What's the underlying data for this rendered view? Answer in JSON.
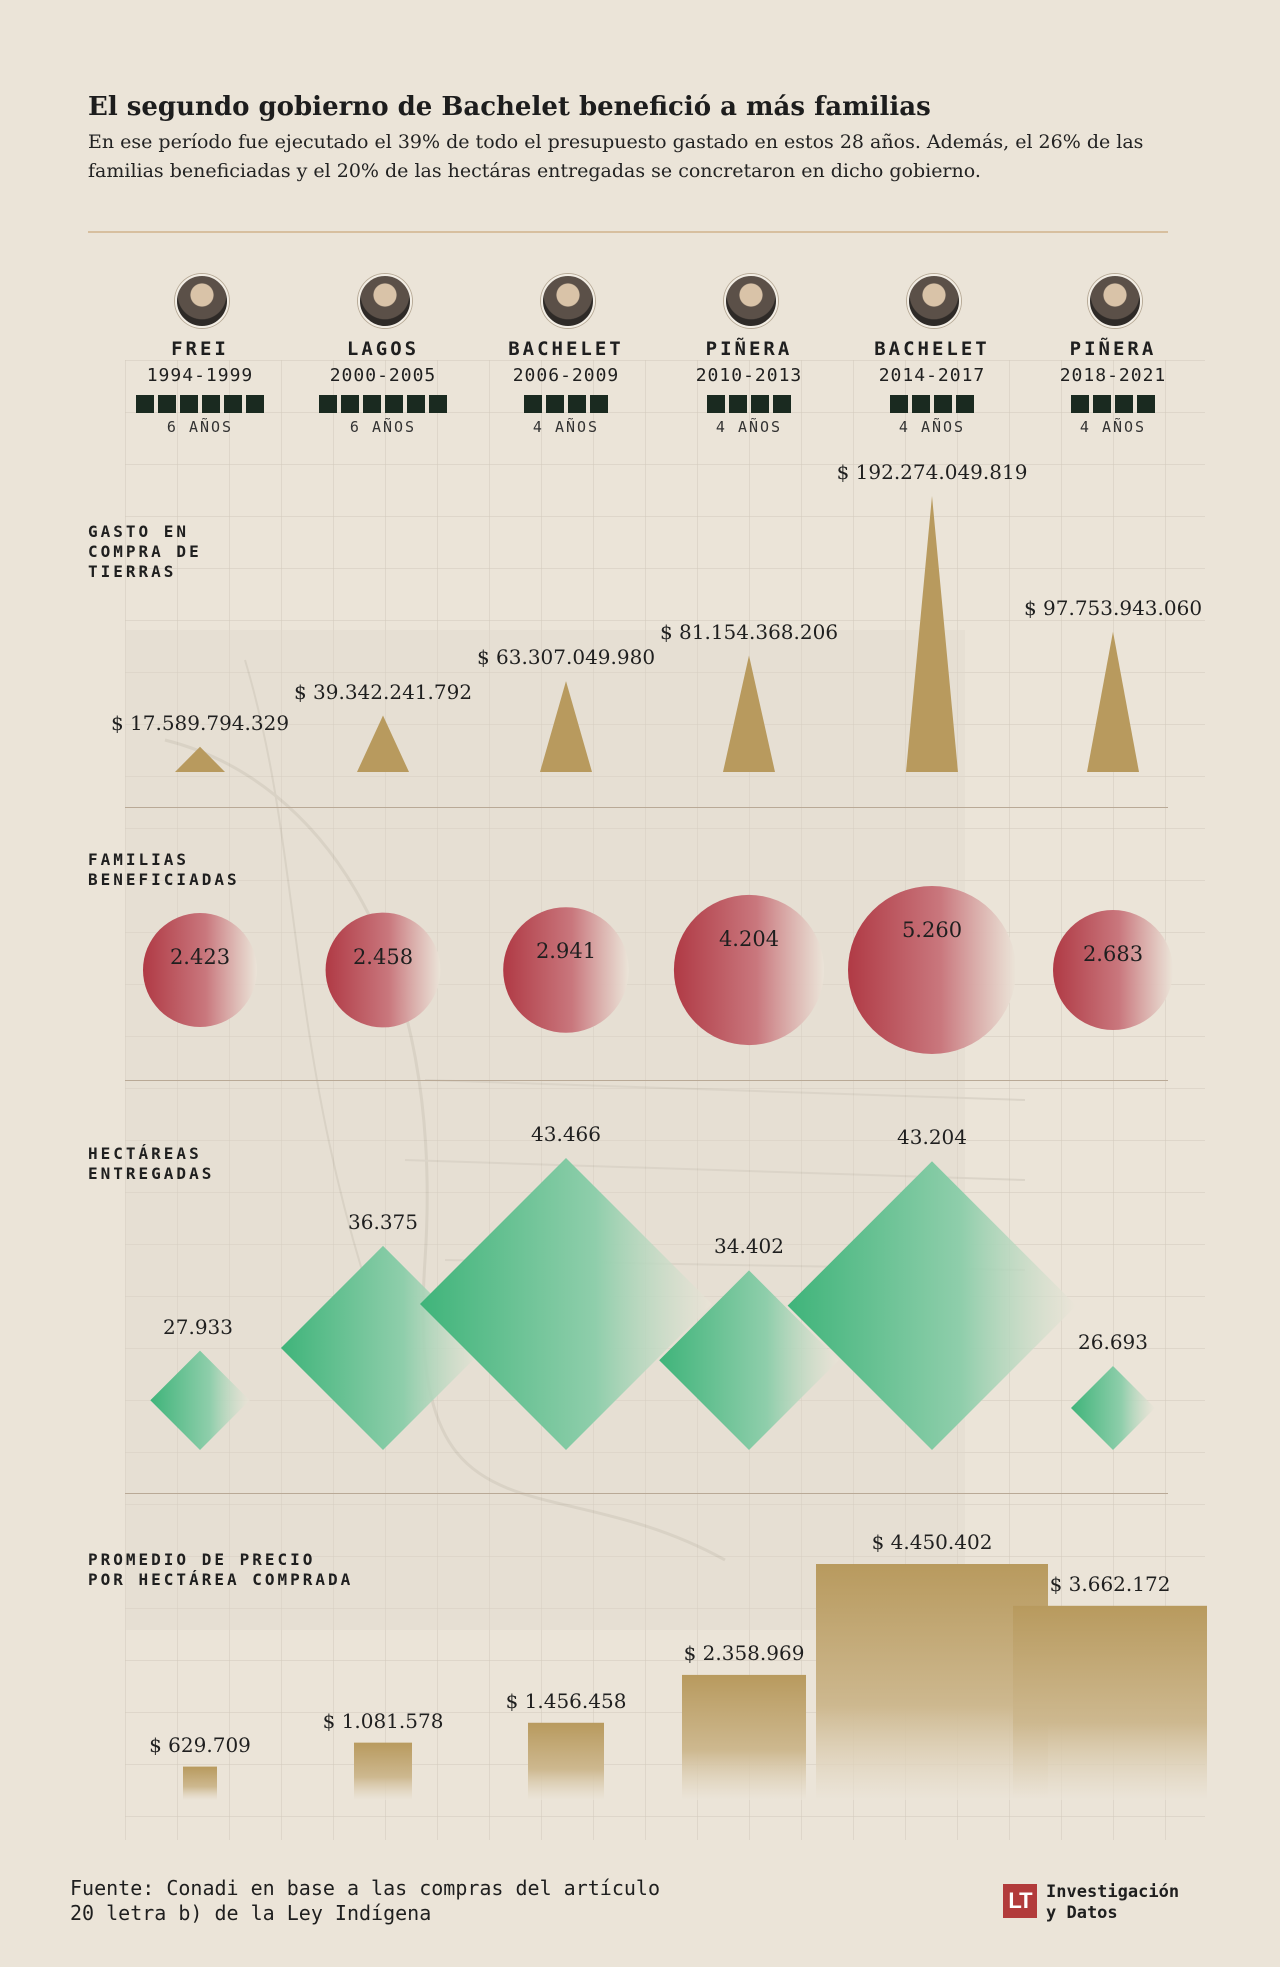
{
  "title": "El segundo gobierno de Bachelet benefició a más familias",
  "subtitle": "En ese período fue ejecutado el 39% de todo el presupuesto gastado en estos 28 años. Además, el 26% de las familias beneficiadas y el 20% de las hectáras entregadas se concretaron en dicho gobierno.",
  "sections": {
    "gasto": "GASTO EN\nCOMPRA DE\nTIERRAS",
    "familias": "FAMILIAS\nBENEFICIADAS",
    "hectareas": "HECTÁREAS\nENTREGADAS",
    "precio": "PROMEDIO DE PRECIO\nPOR HECTÁREA COMPRADA"
  },
  "footer": {
    "source": "Fuente: Conadi en base a las compras del artículo\n20 letra b) de la Ley Indígena",
    "logo_mark": "LT",
    "logo_text": "Investigación\ny Datos"
  },
  "colors": {
    "gold": "#b89a5e",
    "red": "#b03a45",
    "green": "#3fb47a",
    "block": "#1a2a20"
  },
  "chart_data": {
    "type": "table",
    "categories": [
      {
        "name": "FREI",
        "years": "1994-1999",
        "duration": "6 AÑOS",
        "years_count": 6
      },
      {
        "name": "LAGOS",
        "years": "2000-2005",
        "duration": "6 AÑOS",
        "years_count": 6
      },
      {
        "name": "BACHELET",
        "years": "2006-2009",
        "duration": "4 AÑOS",
        "years_count": 4
      },
      {
        "name": "PIÑERA",
        "years": "2010-2013",
        "duration": "4 AÑOS",
        "years_count": 4
      },
      {
        "name": "BACHELET",
        "years": "2014-2017",
        "duration": "4 AÑOS",
        "years_count": 4
      },
      {
        "name": "PIÑERA",
        "years": "2018-2021",
        "duration": "4 AÑOS",
        "years_count": 4
      }
    ],
    "series": [
      {
        "key": "gasto",
        "mark": "triangle",
        "values": [
          17589794329,
          39342241792,
          63307049980,
          81154368206,
          192274049819,
          97753943060
        ],
        "labels": [
          "$ 17.589.794.329",
          "$ 39.342.241.792",
          "$ 63.307.049.980",
          "$ 81.154.368.206",
          "$ 192.274.049.819",
          "$ 97.753.943.060"
        ]
      },
      {
        "key": "familias",
        "mark": "circle",
        "values": [
          2423,
          2458,
          2941,
          4204,
          5260,
          2683
        ],
        "labels": [
          "2.423",
          "2.458",
          "2.941",
          "4.204",
          "5.260",
          "2.683"
        ]
      },
      {
        "key": "hectareas",
        "mark": "diamond",
        "values": [
          27933,
          36375,
          43466,
          34402,
          43204,
          26693
        ],
        "labels": [
          "27.933",
          "36.375",
          "43.466",
          "34.402",
          "43.204",
          "26.693"
        ]
      },
      {
        "key": "precio",
        "mark": "bar",
        "values": [
          629709,
          1081578,
          1456458,
          2358969,
          4450402,
          3662172
        ],
        "labels": [
          "$ 629.709",
          "$ 1.081.578",
          "$ 1.456.458",
          "$ 2.358.969",
          "$ 4.450.402",
          "$ 3.662.172"
        ]
      }
    ]
  }
}
